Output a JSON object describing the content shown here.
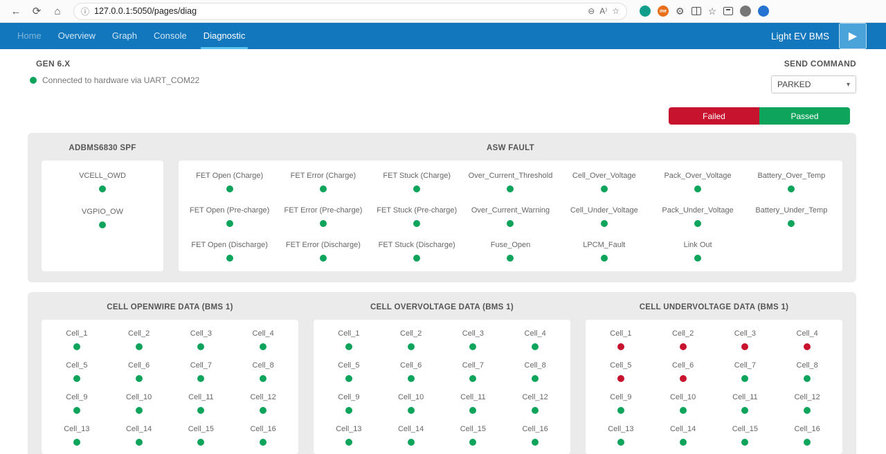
{
  "browser": {
    "url": "127.0.0.1:5050/pages/diag"
  },
  "icons": {
    "back": "←",
    "refresh": "⟳",
    "home": "⌂",
    "info": "ⓘ",
    "zoom": "⊖",
    "read_aloud": "A⁾",
    "star": "☆",
    "settings_wheel": "⚙",
    "favorites_hub": "☆",
    "profile_me": "me",
    "caret": "▾",
    "play": "▶"
  },
  "nav": {
    "tabs": [
      {
        "label": "Home"
      },
      {
        "label": "Overview"
      },
      {
        "label": "Graph"
      },
      {
        "label": "Console"
      },
      {
        "label": "Diagnostic"
      }
    ],
    "active": "Diagnostic",
    "brand": "Light EV BMS"
  },
  "status": {
    "title": "GEN 6.X",
    "connection": "Connected to hardware via UART_COM22"
  },
  "send_command": {
    "label": "SEND COMMAND",
    "value": "PARKED"
  },
  "legend": {
    "failed": "Failed",
    "passed": "Passed"
  },
  "colors": {
    "passed": "#0ea45c",
    "failed": "#c8132e",
    "nav_blue": "#1377bd"
  },
  "fault_panel": {
    "sections": [
      {
        "title": "ADBMS6830 SPF",
        "cols": 1,
        "items": [
          {
            "label": "VCELL_OWD",
            "status": "passed"
          },
          {
            "label": "VGPIO_OW",
            "status": "passed"
          }
        ]
      },
      {
        "title": "ASW FAULT",
        "cols": 7,
        "items": [
          {
            "label": "FET Open (Charge)",
            "status": "passed"
          },
          {
            "label": "FET Error (Charge)",
            "status": "passed"
          },
          {
            "label": "FET Stuck (Charge)",
            "status": "passed"
          },
          {
            "label": "Over_Current_Threshold",
            "status": "passed"
          },
          {
            "label": "Cell_Over_Voltage",
            "status": "passed"
          },
          {
            "label": "Pack_Over_Voltage",
            "status": "passed"
          },
          {
            "label": "Battery_Over_Temp",
            "status": "passed"
          },
          {
            "label": "FET Open (Pre-charge)",
            "status": "passed"
          },
          {
            "label": "FET Error (Pre-charge)",
            "status": "passed"
          },
          {
            "label": "FET Stuck (Pre-charge)",
            "status": "passed"
          },
          {
            "label": "Over_Current_Warning",
            "status": "passed"
          },
          {
            "label": "Cell_Under_Voltage",
            "status": "passed"
          },
          {
            "label": "Pack_Under_Voltage",
            "status": "passed"
          },
          {
            "label": "Battery_Under_Temp",
            "status": "passed"
          },
          {
            "label": "FET Open (Discharge)",
            "status": "passed"
          },
          {
            "label": "FET Error (Discharge)",
            "status": "passed"
          },
          {
            "label": "FET Stuck (Discharge)",
            "status": "passed"
          },
          {
            "label": "Fuse_Open",
            "status": "passed"
          },
          {
            "label": "LPCM_Fault",
            "status": "passed"
          },
          {
            "label": "Link Out",
            "status": "passed"
          }
        ]
      }
    ]
  },
  "cell_panel": {
    "sections": [
      {
        "title": "CELL OPENWIRE DATA (BMS 1)",
        "cols": 4,
        "items": [
          {
            "label": "Cell_1",
            "status": "passed"
          },
          {
            "label": "Cell_2",
            "status": "passed"
          },
          {
            "label": "Cell_3",
            "status": "passed"
          },
          {
            "label": "Cell_4",
            "status": "passed"
          },
          {
            "label": "Cell_5",
            "status": "passed"
          },
          {
            "label": "Cell_6",
            "status": "passed"
          },
          {
            "label": "Cell_7",
            "status": "passed"
          },
          {
            "label": "Cell_8",
            "status": "passed"
          },
          {
            "label": "Cell_9",
            "status": "passed"
          },
          {
            "label": "Cell_10",
            "status": "passed"
          },
          {
            "label": "Cell_11",
            "status": "passed"
          },
          {
            "label": "Cell_12",
            "status": "passed"
          },
          {
            "label": "Cell_13",
            "status": "passed"
          },
          {
            "label": "Cell_14",
            "status": "passed"
          },
          {
            "label": "Cell_15",
            "status": "passed"
          },
          {
            "label": "Cell_16",
            "status": "passed"
          }
        ]
      },
      {
        "title": "CELL OVERVOLTAGE DATA (BMS 1)",
        "cols": 4,
        "items": [
          {
            "label": "Cell_1",
            "status": "passed"
          },
          {
            "label": "Cell_2",
            "status": "passed"
          },
          {
            "label": "Cell_3",
            "status": "passed"
          },
          {
            "label": "Cell_4",
            "status": "passed"
          },
          {
            "label": "Cell_5",
            "status": "passed"
          },
          {
            "label": "Cell_6",
            "status": "passed"
          },
          {
            "label": "Cell_7",
            "status": "passed"
          },
          {
            "label": "Cell_8",
            "status": "passed"
          },
          {
            "label": "Cell_9",
            "status": "passed"
          },
          {
            "label": "Cell_10",
            "status": "passed"
          },
          {
            "label": "Cell_11",
            "status": "passed"
          },
          {
            "label": "Cell_12",
            "status": "passed"
          },
          {
            "label": "Cell_13",
            "status": "passed"
          },
          {
            "label": "Cell_14",
            "status": "passed"
          },
          {
            "label": "Cell_15",
            "status": "passed"
          },
          {
            "label": "Cell_16",
            "status": "passed"
          }
        ]
      },
      {
        "title": "CELL UNDERVOLTAGE DATA (BMS 1)",
        "cols": 4,
        "items": [
          {
            "label": "Cell_1",
            "status": "failed"
          },
          {
            "label": "Cell_2",
            "status": "failed"
          },
          {
            "label": "Cell_3",
            "status": "failed"
          },
          {
            "label": "Cell_4",
            "status": "failed"
          },
          {
            "label": "Cell_5",
            "status": "failed"
          },
          {
            "label": "Cell_6",
            "status": "failed"
          },
          {
            "label": "Cell_7",
            "status": "passed"
          },
          {
            "label": "Cell_8",
            "status": "passed"
          },
          {
            "label": "Cell_9",
            "status": "passed"
          },
          {
            "label": "Cell_10",
            "status": "passed"
          },
          {
            "label": "Cell_11",
            "status": "passed"
          },
          {
            "label": "Cell_12",
            "status": "passed"
          },
          {
            "label": "Cell_13",
            "status": "passed"
          },
          {
            "label": "Cell_14",
            "status": "passed"
          },
          {
            "label": "Cell_15",
            "status": "passed"
          },
          {
            "label": "Cell_16",
            "status": "passed"
          }
        ]
      }
    ]
  }
}
